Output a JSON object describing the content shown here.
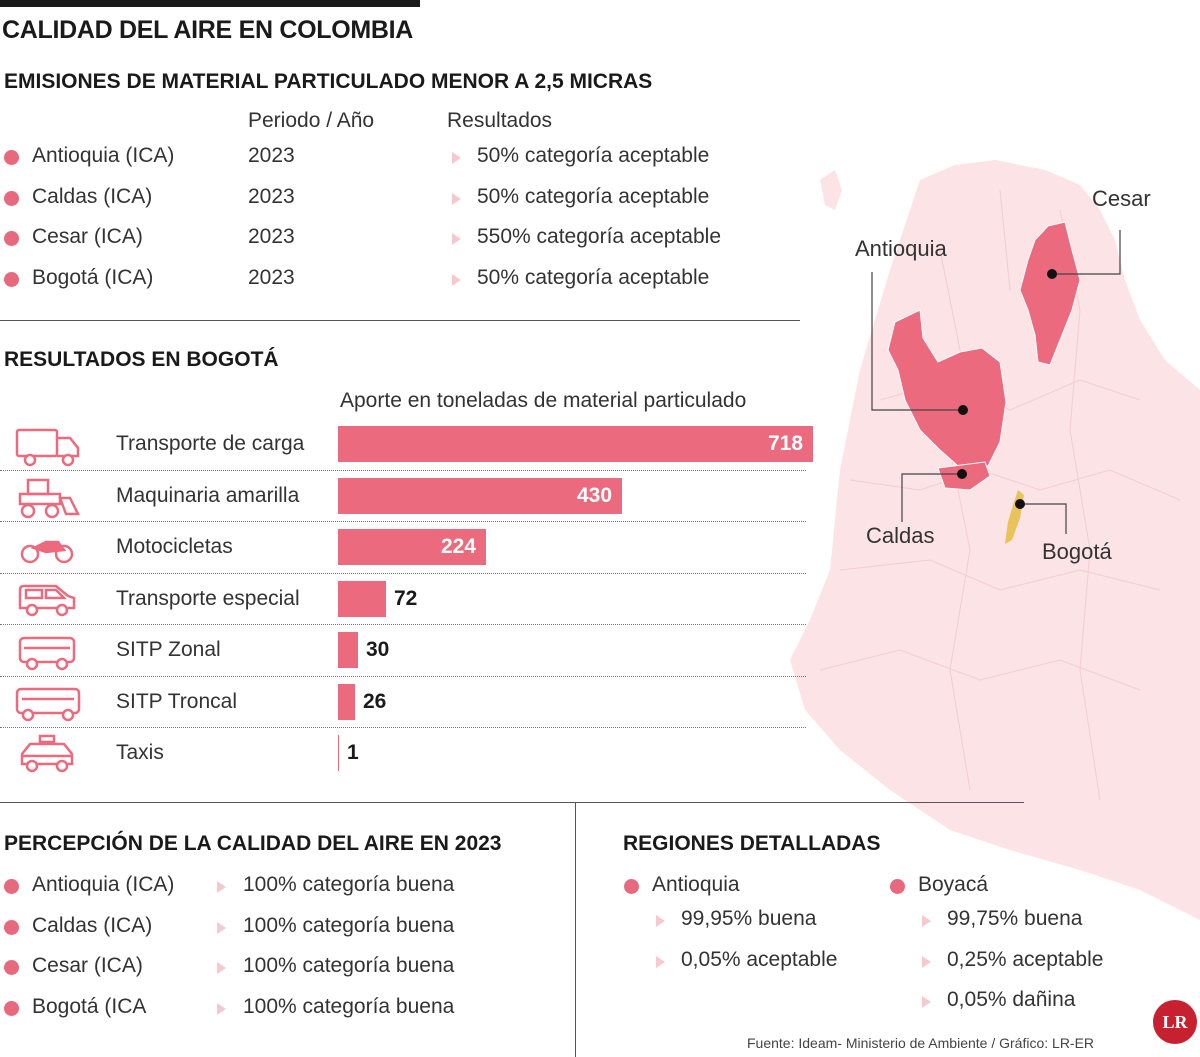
{
  "main_title": "CALIDAD DEL AIRE EN COLOMBIA",
  "emissions": {
    "title": "EMISIONES DE MATERIAL PARTICULADO MENOR A 2,5 MICRAS",
    "col_period": "Periodo / Año",
    "col_results": "Resultados",
    "rows": [
      {
        "name": "Antioquia (ICA)",
        "year": "2023",
        "result": "50% categoría aceptable"
      },
      {
        "name": "Caldas (ICA)",
        "year": "2023",
        "result": "50% categoría aceptable"
      },
      {
        "name": "Cesar (ICA)",
        "year": "2023",
        "result": "550% categoría aceptable"
      },
      {
        "name": "Bogotá (ICA)",
        "year": "2023",
        "result": "50% categoría aceptable"
      }
    ]
  },
  "bogota": {
    "title": "RESULTADOS EN BOGOTÁ"
  },
  "chart_data": {
    "type": "bar",
    "orientation": "horizontal",
    "title": "Aporte en toneladas de material particulado",
    "categories": [
      "Transporte de carga",
      "Maquinaria amarilla",
      "Motocicletas",
      "Transporte especial",
      "SITP Zonal",
      "SITP Troncal",
      "Taxis"
    ],
    "values": [
      718,
      430,
      224,
      72,
      30,
      26,
      1
    ],
    "labels": [
      "718",
      "430",
      "224",
      "72",
      "30",
      "26",
      "1"
    ],
    "icons": [
      "truck-icon",
      "bulldozer-icon",
      "motorcycle-icon",
      "van-icon",
      "bus-icon",
      "articulated-bus-icon",
      "taxi-icon"
    ],
    "xlim": [
      0,
      718
    ],
    "bar_color": "#ec6a7e"
  },
  "perception": {
    "title": "PERCEPCIÓN DE LA CALIDAD DEL AIRE EN 2023",
    "rows": [
      {
        "name": "Antioquia (ICA)",
        "result": "100% categoría buena"
      },
      {
        "name": "Caldas (ICA)",
        "result": "100% categoría buena"
      },
      {
        "name": "Cesar (ICA)",
        "result": "100% categoría buena"
      },
      {
        "name": "Bogotá (ICA",
        "result": "100% categoría buena"
      }
    ]
  },
  "regions": {
    "title": "REGIONES DETALLADAS",
    "antioquia": {
      "name": "Antioquia",
      "items": [
        "99,95% buena",
        "0,05% aceptable"
      ]
    },
    "boyaca": {
      "name": "Boyacá",
      "items": [
        "99,75% buena",
        "0,25% aceptable",
        "0,05% dañina"
      ]
    }
  },
  "map": {
    "labels": {
      "cesar": "Cesar",
      "antioquia": "Antioquia",
      "caldas": "Caldas",
      "bogota": "Bogotá"
    },
    "colors": {
      "land": "#fbe3e6",
      "highlight": "#ec6a7e",
      "bogota": "#e8c35a"
    }
  },
  "source": "Fuente: Ideam- Ministerio de Ambiente / Gráfico: LR-ER",
  "logo_text": "LR"
}
